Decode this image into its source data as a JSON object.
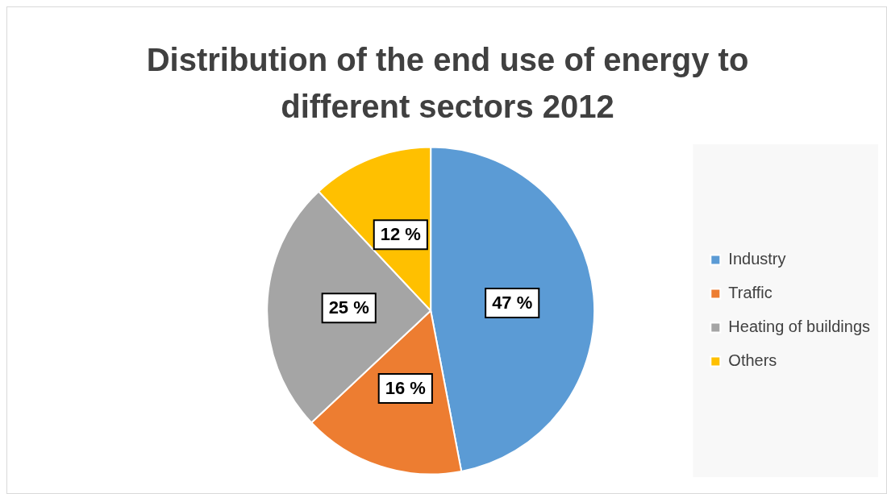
{
  "chart_data": {
    "type": "pie",
    "title": "Distribution of the end use of energy to different sectors 2012",
    "categories": [
      "Industry",
      "Traffic",
      "Heating of buildings",
      "Others"
    ],
    "values": [
      47,
      16,
      25,
      12
    ],
    "colors": [
      "#5b9bd5",
      "#ed7d31",
      "#a5a5a5",
      "#ffc000"
    ],
    "value_labels": [
      "47 %",
      "16 %",
      "25 %",
      "12 %"
    ],
    "legend": "right"
  }
}
